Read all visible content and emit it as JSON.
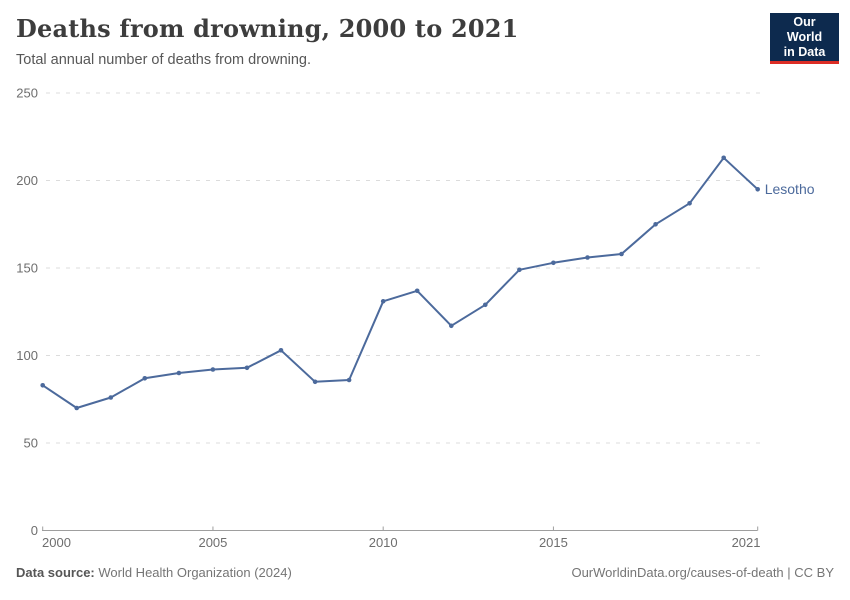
{
  "header": {
    "title": "Deaths from drowning, 2000 to 2021",
    "subtitle": "Total annual number of deaths from drowning."
  },
  "logo": {
    "line1": "Our World",
    "line2": "in Data",
    "bg": "#0d2a4e",
    "accent": "#dc2d25"
  },
  "chart_data": {
    "type": "line",
    "title": "Deaths from drowning, 2000 to 2021",
    "subtitle": "Total annual number of deaths from drowning.",
    "xlabel": "",
    "ylabel": "",
    "x": [
      2000,
      2001,
      2002,
      2003,
      2004,
      2005,
      2006,
      2007,
      2008,
      2009,
      2010,
      2011,
      2012,
      2013,
      2014,
      2015,
      2016,
      2017,
      2018,
      2019,
      2020,
      2021
    ],
    "series": [
      {
        "name": "Lesotho",
        "color": "#4C6A9C",
        "values": [
          83,
          70,
          76,
          87,
          90,
          92,
          93,
          103,
          85,
          86,
          131,
          137,
          117,
          129,
          149,
          153,
          156,
          158,
          175,
          187,
          213,
          195
        ]
      }
    ],
    "ylim": [
      0,
      250
    ],
    "xlim": [
      2000,
      2021
    ],
    "y_ticks": [
      0,
      50,
      100,
      150,
      200,
      250
    ],
    "x_ticks": [
      2000,
      2005,
      2010,
      2015,
      2021
    ],
    "grid": "horizontal-dashed",
    "grid_color": "#dcdcdc",
    "axis_color": "#9e9e9e",
    "tick_label_color": "#6e6e6e",
    "legend": "end-of-line-label"
  },
  "footer": {
    "source_label": "Data source:",
    "source_value": " World Health Organization (2024)",
    "link": "OurWorldinData.org/causes-of-death | CC BY"
  }
}
